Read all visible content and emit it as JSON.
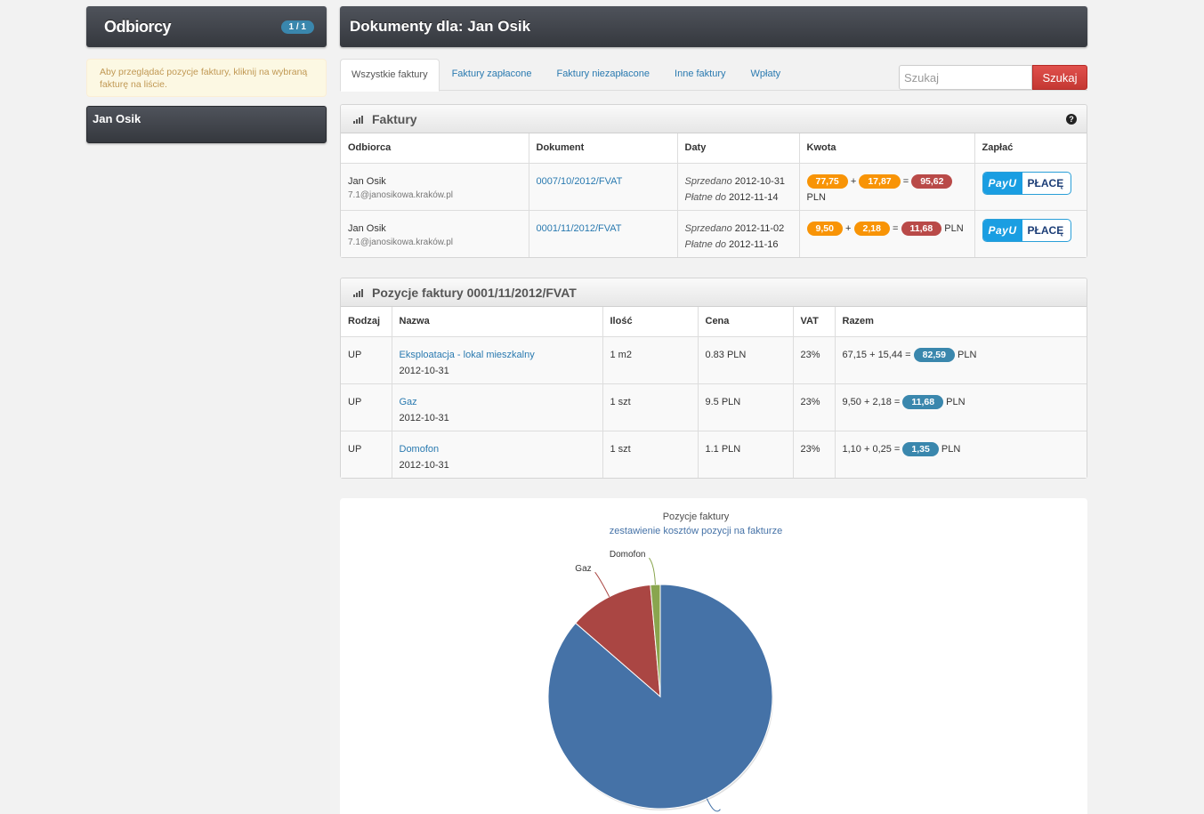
{
  "sidebar": {
    "title": "Odbiorcy",
    "count": "1 / 1",
    "alert": "Aby przeglądać pozycje faktury, kliknij na wybraną fakturę na liście.",
    "recipient": "Jan Osik"
  },
  "main": {
    "title": "Dokumenty dla: Jan Osik",
    "tabs": [
      {
        "label": "Wszystkie faktury",
        "active": true
      },
      {
        "label": "Faktury zapłacone"
      },
      {
        "label": "Faktury niezapłacone"
      },
      {
        "label": "Inne faktury"
      },
      {
        "label": "Wpłaty"
      }
    ],
    "search": {
      "placeholder": "Szukaj",
      "button": "Szukaj"
    }
  },
  "invoices": {
    "title": "Faktury",
    "help": "?",
    "columns": [
      "Odbiorca",
      "Dokument",
      "Daty",
      "Kwota",
      "Zapłać"
    ],
    "rows": [
      {
        "name": "Jan Osik",
        "address": "7.1@janosikowa.kraków.pl",
        "document": "0007/10/2012/FVAT",
        "sold_label": "Sprzedano",
        "sold": "2012-10-31",
        "due_label": "Płatne do",
        "due": "2012-11-14",
        "net": "77,75",
        "plus": "+",
        "vat": "17,87",
        "eq": "=",
        "total": "95,62",
        "currency": "PLN",
        "pay_left": "PayU",
        "pay_right": "PŁACĘ"
      },
      {
        "name": "Jan Osik",
        "address": "7.1@janosikowa.kraków.pl",
        "document": "0001/11/2012/FVAT",
        "sold_label": "Sprzedano",
        "sold": "2012-11-02",
        "due_label": "Płatne do",
        "due": "2012-11-16",
        "net": "9,50",
        "plus": "+",
        "vat": "2,18",
        "eq": "=",
        "total": "11,68",
        "currency": "PLN",
        "pay_left": "PayU",
        "pay_right": "PŁACĘ"
      }
    ]
  },
  "items": {
    "title": "Pozycje faktury 0001/11/2012/FVAT",
    "columns": [
      "Rodzaj",
      "Nazwa",
      "Ilość",
      "Cena",
      "VAT",
      "Razem"
    ],
    "rows": [
      {
        "type": "UP",
        "name": "Eksploatacja - lokal mieszkalny",
        "date": "2012-10-31",
        "qty": "1 m2",
        "price": "0.83 PLN",
        "vat": "23%",
        "calc": "67,15 + 15,44 =",
        "total": "82,59",
        "currency": "PLN"
      },
      {
        "type": "UP",
        "name": "Gaz",
        "date": "2012-10-31",
        "qty": "1 szt",
        "price": "9.5 PLN",
        "vat": "23%",
        "calc": "9,50 + 2,18 =",
        "total": "11,68",
        "currency": "PLN"
      },
      {
        "type": "UP",
        "name": "Domofon",
        "date": "2012-10-31",
        "qty": "1 szt",
        "price": "1.1 PLN",
        "vat": "23%",
        "calc": "1,10 + 0,25 =",
        "total": "1,35",
        "currency": "PLN"
      }
    ]
  },
  "chart_data": {
    "type": "pie",
    "title": "Pozycje faktury",
    "subtitle": "zestawienie kosztów pozycji na fakturze",
    "categories": [
      "Eksploatacja - lokal mieszkalny",
      "Gaz",
      "Domofon"
    ],
    "labels": [
      "",
      "Gaz",
      "Domofon"
    ],
    "values": [
      82.59,
      11.68,
      1.35
    ],
    "colors": [
      "#4572a7",
      "#aa4643",
      "#89a54e"
    ]
  }
}
